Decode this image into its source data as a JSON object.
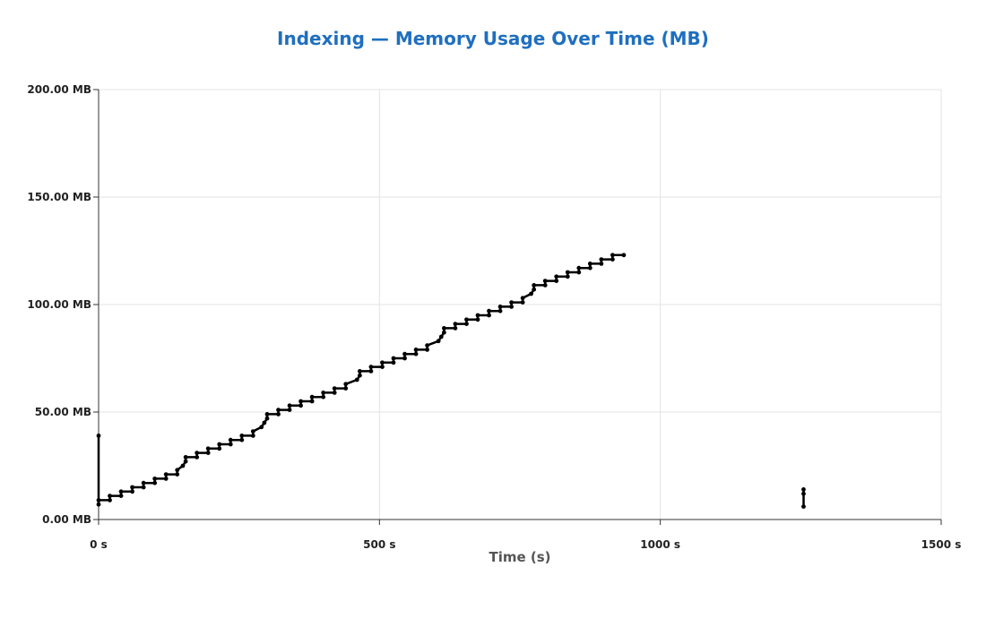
{
  "chart_data": {
    "type": "line",
    "title": "Indexing — Memory Usage Over Time (MB)",
    "xlabel": "Time (s)",
    "ylabel": "",
    "xlim": [
      0,
      1500
    ],
    "ylim": [
      0,
      200
    ],
    "x_ticks": [
      0,
      500,
      1000,
      1500
    ],
    "x_tick_labels": [
      "0 s",
      "500 s",
      "1000 s",
      "1500 s"
    ],
    "y_ticks": [
      0,
      50,
      100,
      150,
      200
    ],
    "y_tick_labels": [
      "0.00 MB",
      "50.00 MB",
      "100.00 MB",
      "150.00 MB",
      "200.00 MB"
    ],
    "grid": true,
    "legend": "none",
    "series": [
      {
        "color": "#000000",
        "segments": [
          {
            "x": [
              0,
              0,
              0,
              20,
              20,
              40,
              40,
              60,
              60,
              80,
              80,
              100,
              100,
              120,
              120,
              140,
              140,
              150,
              155,
              155,
              175,
              175,
              195,
              195,
              215,
              215,
              235,
              235,
              255,
              255,
              275,
              275,
              290,
              295,
              300,
              300,
              320,
              320,
              340,
              340,
              360,
              360,
              380,
              380,
              400,
              400,
              420,
              420,
              440,
              440,
              460,
              465,
              465,
              485,
              485,
              505,
              505,
              525,
              525,
              545,
              545,
              565,
              565,
              585,
              585,
              605,
              610,
              615,
              615,
              635,
              635,
              655,
              655,
              675,
              675,
              695,
              695,
              715,
              715,
              735,
              735,
              755,
              755,
              770,
              775,
              775,
              795,
              795,
              815,
              815,
              835,
              835,
              855,
              855,
              875,
              875,
              895,
              895,
              915,
              915,
              935
            ],
            "y": [
              39,
              7,
              9,
              9,
              11,
              11,
              13,
              13,
              15,
              15,
              17,
              17,
              19,
              19,
              21,
              21,
              23,
              25,
              27,
              29,
              29,
              31,
              31,
              33,
              33,
              35,
              35,
              37,
              37,
              39,
              39,
              41,
              43,
              45,
              47,
              49,
              49,
              51,
              51,
              53,
              53,
              55,
              55,
              57,
              57,
              59,
              59,
              61,
              61,
              63,
              65,
              67,
              69,
              69,
              71,
              71,
              73,
              73,
              75,
              75,
              77,
              77,
              79,
              79,
              81,
              83,
              85,
              87,
              89,
              89,
              91,
              91,
              93,
              93,
              95,
              95,
              97,
              97,
              99,
              99,
              101,
              101,
              103,
              105,
              107,
              109,
              109,
              111,
              111,
              113,
              113,
              115,
              115,
              117,
              117,
              119,
              119,
              121,
              121,
              123,
              123
            ]
          },
          {
            "x": [
              1255,
              1255,
              1255
            ],
            "y": [
              14,
              12,
              6
            ]
          }
        ]
      }
    ],
    "colors": {
      "title": "#1f6fbf",
      "line": "#000000",
      "grid": "#e3e3e3",
      "tick_label": "#222222",
      "axis_title": "#555555"
    }
  }
}
